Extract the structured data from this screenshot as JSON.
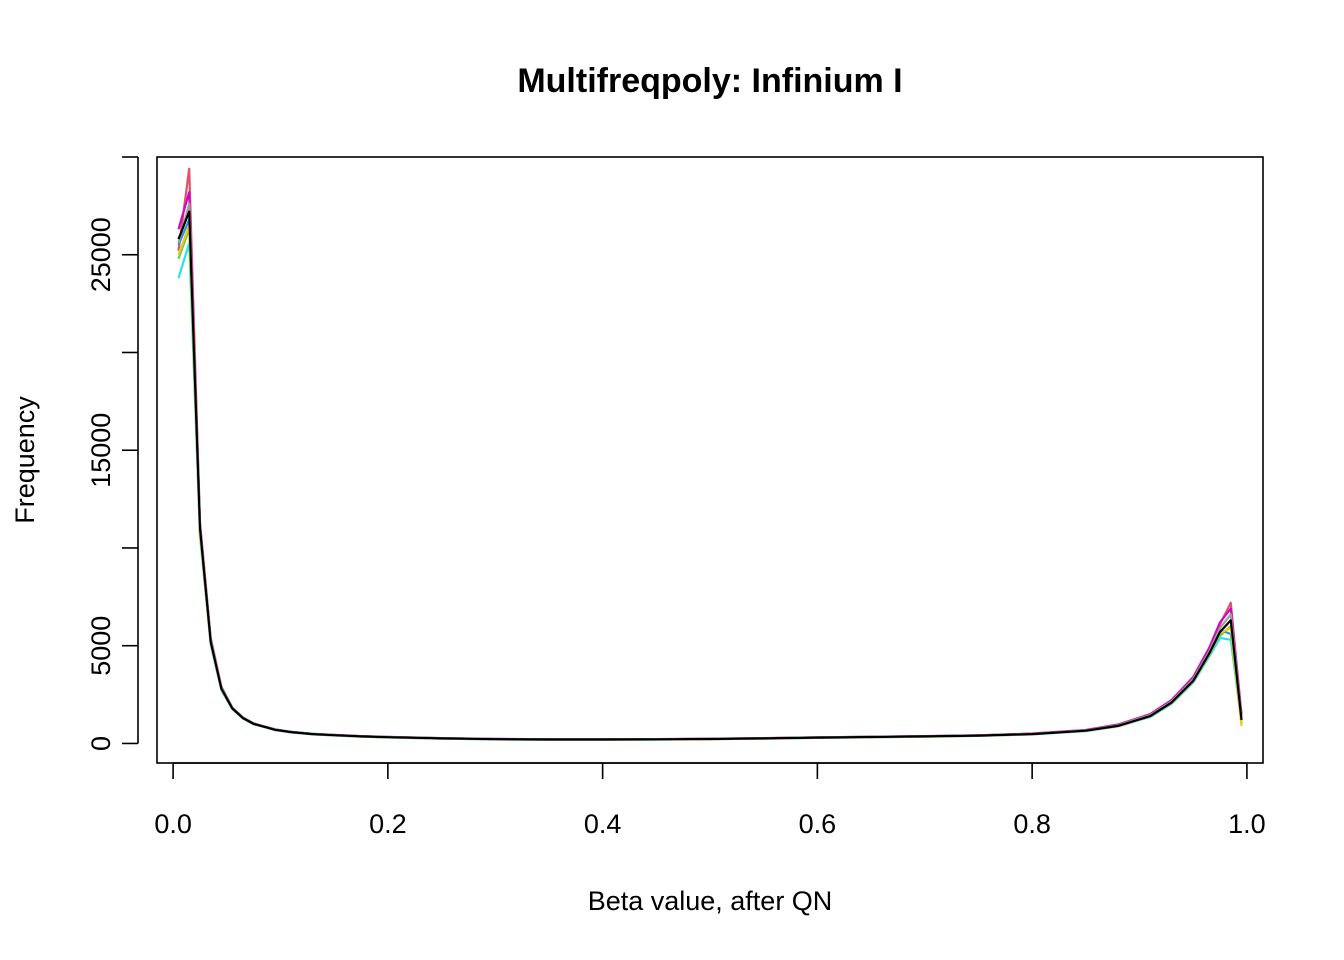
{
  "chart_data": {
    "type": "line",
    "title": "Multifreqpoly: Infinium I",
    "xlabel": "Beta value, after QN",
    "ylabel": "Frequency",
    "xlim": [
      -0.015,
      1.015
    ],
    "ylim": [
      -1000,
      30000
    ],
    "x_ticks": [
      0.0,
      0.2,
      0.4,
      0.6,
      0.8,
      1.0
    ],
    "x_tick_labels": [
      "0.0",
      "0.2",
      "0.4",
      "0.6",
      "0.8",
      "1.0"
    ],
    "y_ticks": [
      0,
      5000,
      10000,
      15000,
      20000,
      25000,
      30000
    ],
    "y_tick_labels": [
      "0",
      "5000",
      "",
      "15000",
      "",
      "25000",
      ""
    ],
    "grid": false,
    "legend": "none",
    "x": [
      0.005,
      0.015,
      0.025,
      0.035,
      0.045,
      0.055,
      0.065,
      0.075,
      0.085,
      0.095,
      0.11,
      0.13,
      0.15,
      0.175,
      0.2,
      0.25,
      0.3,
      0.35,
      0.4,
      0.45,
      0.5,
      0.55,
      0.6,
      0.65,
      0.7,
      0.75,
      0.8,
      0.85,
      0.88,
      0.91,
      0.93,
      0.95,
      0.965,
      0.975,
      0.985,
      0.995
    ],
    "series": [
      {
        "color": "#000000",
        "values": [
          25800,
          27200,
          11000,
          5200,
          2800,
          1800,
          1300,
          1000,
          850,
          700,
          580,
          480,
          420,
          360,
          320,
          260,
          220,
          200,
          200,
          210,
          230,
          260,
          300,
          330,
          360,
          400,
          480,
          650,
          900,
          1400,
          2100,
          3200,
          4600,
          5700,
          6300,
          1200
        ]
      },
      {
        "color": "#DF536B",
        "values": [
          25200,
          29400,
          11300,
          5400,
          2900,
          1850,
          1320,
          1020,
          860,
          720,
          590,
          490,
          430,
          370,
          330,
          270,
          230,
          210,
          210,
          220,
          240,
          270,
          310,
          340,
          370,
          410,
          500,
          680,
          950,
          1480,
          2200,
          3350,
          4800,
          6100,
          7200,
          1400
        ]
      },
      {
        "color": "#61D04F",
        "values": [
          24800,
          26300,
          10700,
          5100,
          2750,
          1780,
          1280,
          990,
          840,
          690,
          570,
          470,
          410,
          350,
          310,
          250,
          210,
          190,
          190,
          200,
          220,
          250,
          290,
          320,
          350,
          390,
          470,
          640,
          880,
          1380,
          2050,
          3150,
          4500,
          5500,
          6000,
          1100
        ]
      },
      {
        "color": "#2297E6",
        "values": [
          25500,
          26800,
          10900,
          5250,
          2820,
          1820,
          1310,
          1010,
          850,
          705,
          585,
          485,
          425,
          365,
          325,
          265,
          225,
          205,
          205,
          215,
          235,
          265,
          305,
          335,
          365,
          405,
          490,
          660,
          910,
          1420,
          2120,
          3220,
          4650,
          5800,
          5600,
          1250
        ]
      },
      {
        "color": "#28E2E5",
        "values": [
          23800,
          25600,
          10600,
          5050,
          2720,
          1760,
          1270,
          980,
          830,
          680,
          560,
          465,
          405,
          345,
          305,
          245,
          205,
          185,
          185,
          195,
          215,
          245,
          285,
          315,
          345,
          385,
          465,
          630,
          870,
          1360,
          2030,
          3120,
          4450,
          5400,
          5300,
          1050
        ]
      },
      {
        "color": "#CD0BBC",
        "values": [
          26300,
          28200,
          11200,
          5350,
          2880,
          1840,
          1330,
          1030,
          865,
          725,
          595,
          495,
          435,
          375,
          335,
          275,
          235,
          215,
          215,
          225,
          245,
          275,
          315,
          345,
          375,
          415,
          510,
          690,
          970,
          1500,
          2230,
          3400,
          4900,
          6200,
          6900,
          1500
        ]
      },
      {
        "color": "#F5C710",
        "values": [
          25000,
          26500,
          10800,
          5150,
          2780,
          1790,
          1290,
          995,
          845,
          695,
          575,
          475,
          415,
          355,
          315,
          255,
          215,
          195,
          195,
          205,
          225,
          255,
          295,
          325,
          355,
          395,
          475,
          645,
          890,
          1390,
          2080,
          3180,
          4550,
          5650,
          5900,
          900
        ]
      },
      {
        "color": "#9E9E9E",
        "values": [
          25600,
          27600,
          11100,
          5300,
          2850,
          1830,
          1315,
          1015,
          855,
          710,
          588,
          488,
          428,
          368,
          328,
          268,
          228,
          208,
          208,
          218,
          238,
          268,
          308,
          338,
          368,
          408,
          495,
          670,
          930,
          1450,
          2150,
          3280,
          4700,
          5900,
          6600,
          1300
        ]
      }
    ]
  }
}
